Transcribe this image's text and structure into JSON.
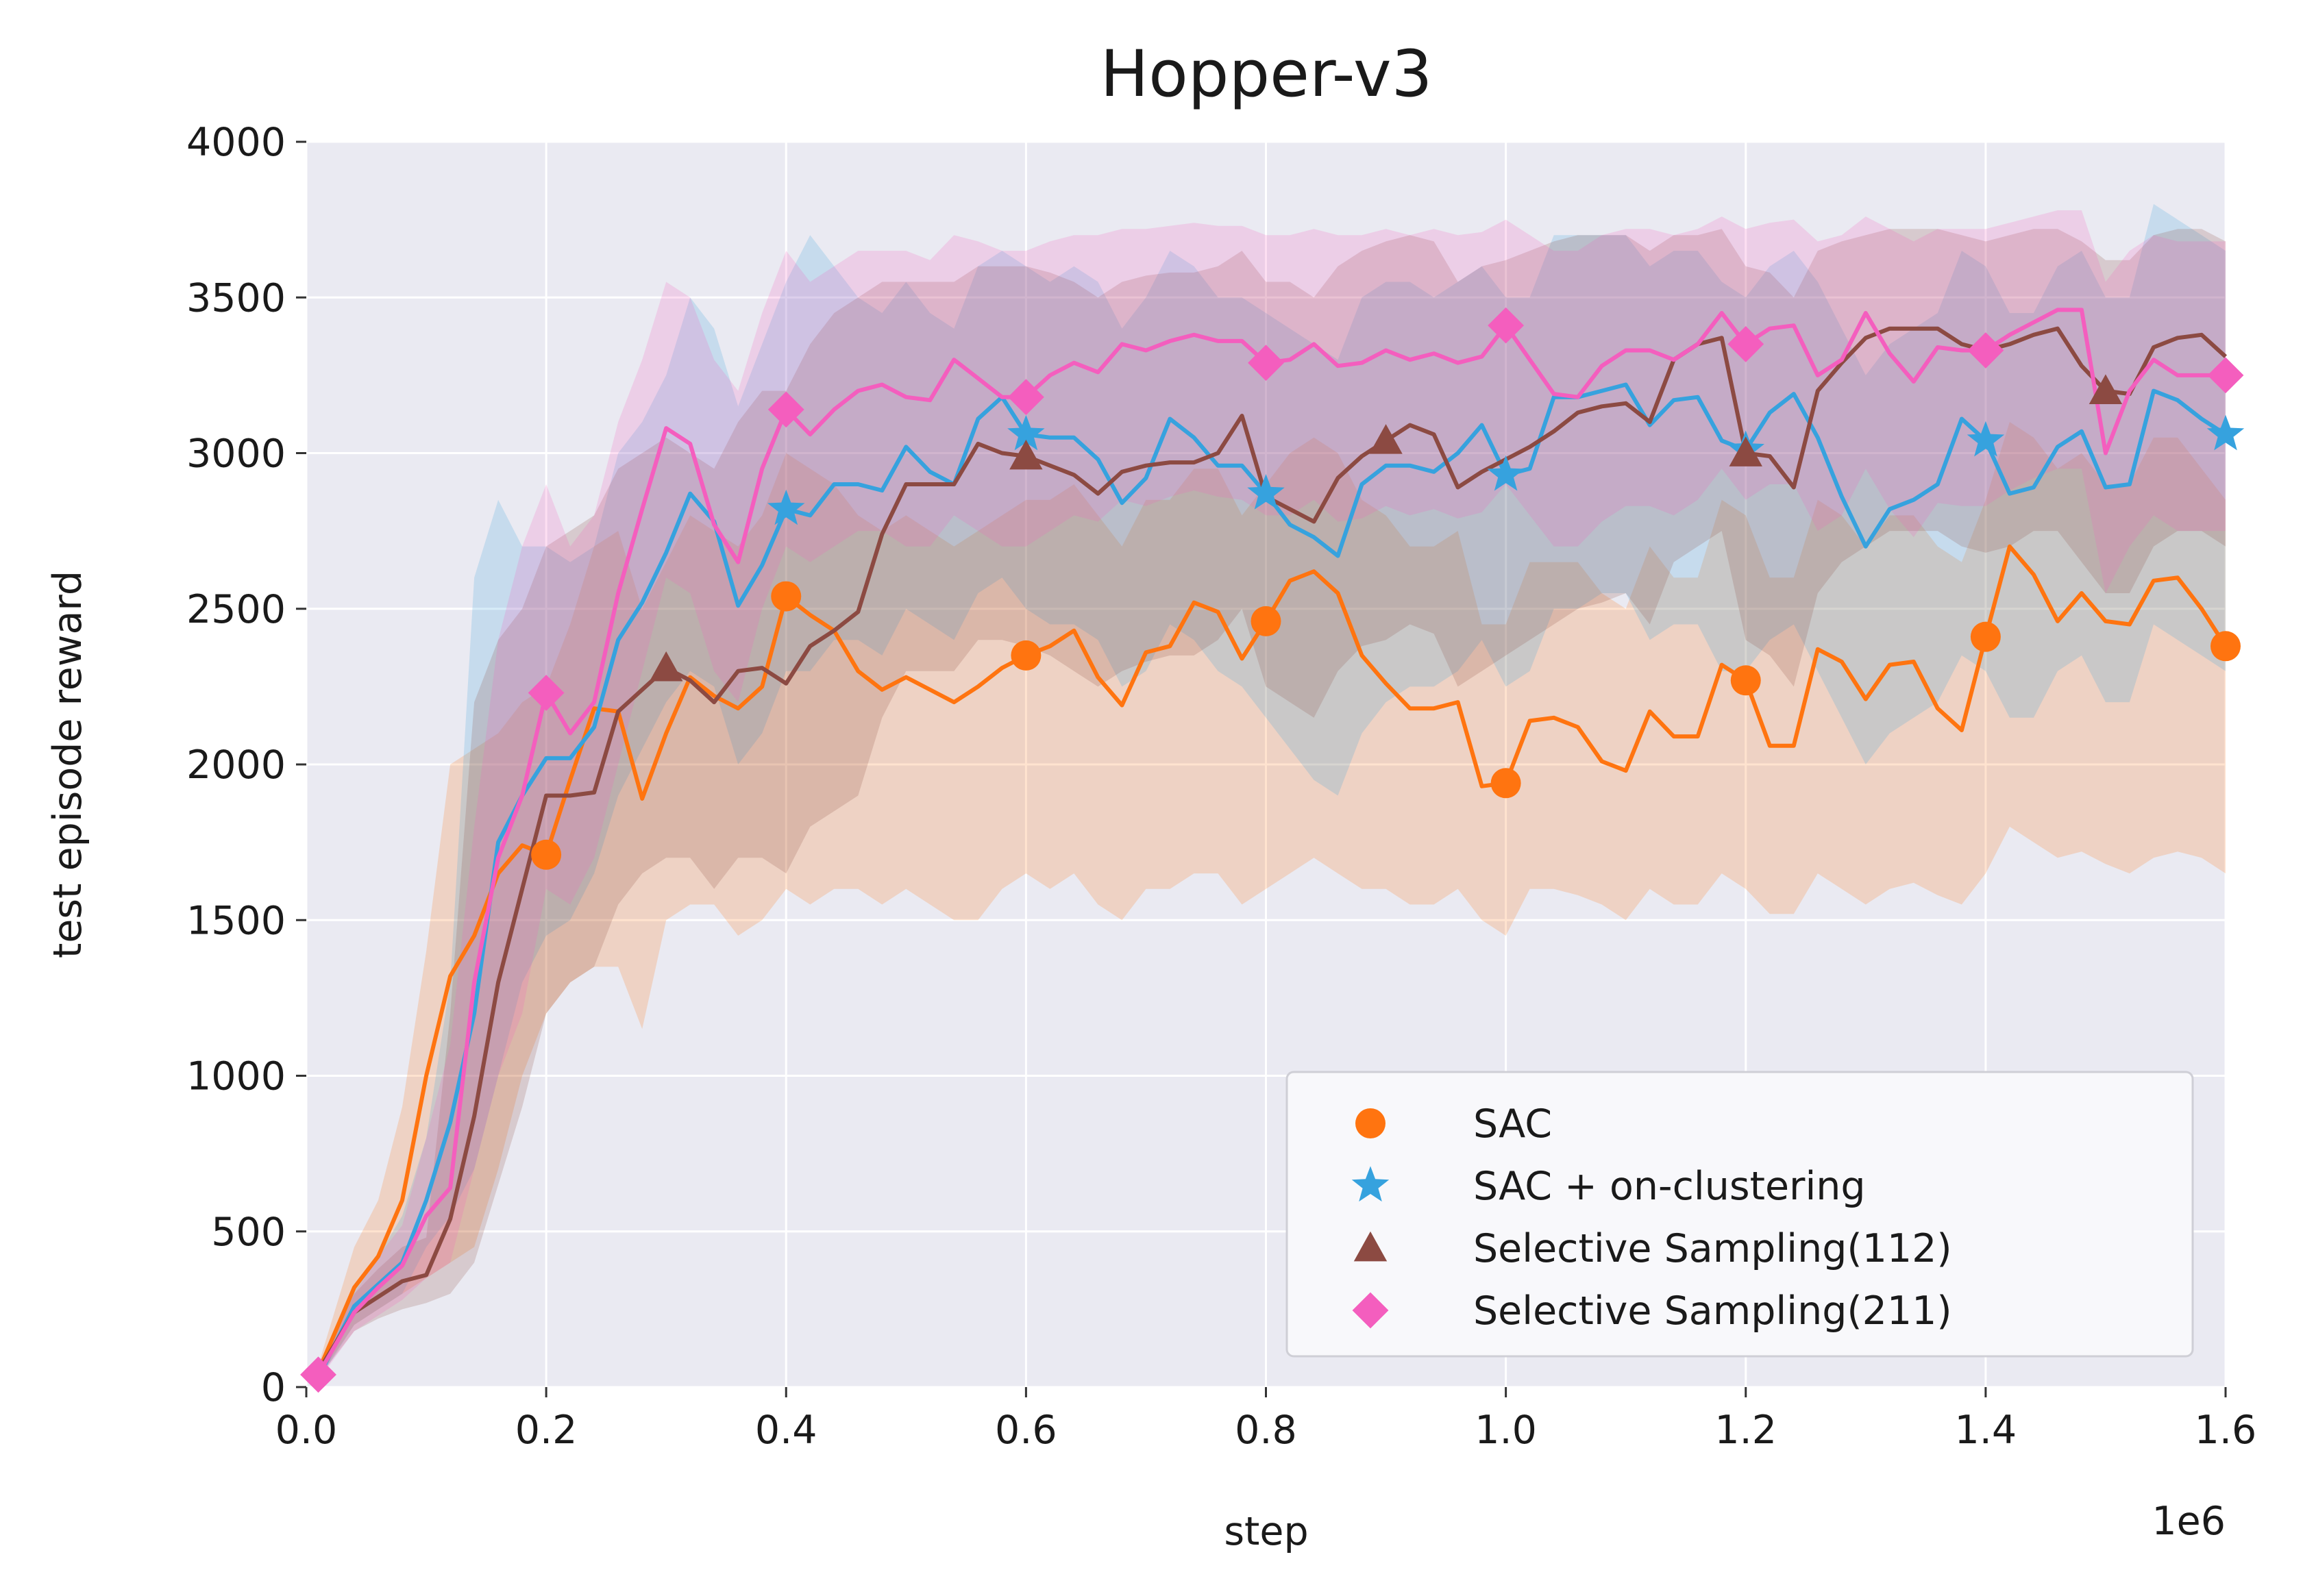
{
  "chart_data": {
    "type": "line",
    "title": "Hopper-v3",
    "xlabel": "step",
    "ylabel": "test episode reward",
    "x_offset_label": "1e6",
    "xlim": [
      0,
      1.6
    ],
    "ylim": [
      0,
      4000
    ],
    "x_ticks": [
      "0.0",
      "0.2",
      "0.4",
      "0.6",
      "0.8",
      "1.0",
      "1.2",
      "1.4",
      "1.6"
    ],
    "y_ticks": [
      "0",
      "500",
      "1000",
      "1500",
      "2000",
      "2500",
      "3000",
      "3500",
      "4000"
    ],
    "grid": true,
    "legend_position": "bottom-right",
    "x": [
      0.01,
      0.04,
      0.06,
      0.08,
      0.1,
      0.12,
      0.14,
      0.16,
      0.18,
      0.2,
      0.22,
      0.24,
      0.26,
      0.28,
      0.3,
      0.32,
      0.34,
      0.36,
      0.38,
      0.4,
      0.42,
      0.44,
      0.46,
      0.48,
      0.5,
      0.52,
      0.54,
      0.56,
      0.58,
      0.6,
      0.62,
      0.64,
      0.66,
      0.68,
      0.7,
      0.72,
      0.74,
      0.76,
      0.78,
      0.8,
      0.82,
      0.84,
      0.86,
      0.88,
      0.9,
      0.92,
      0.94,
      0.96,
      0.98,
      1.0,
      1.02,
      1.04,
      1.06,
      1.08,
      1.1,
      1.12,
      1.14,
      1.16,
      1.18,
      1.2,
      1.22,
      1.24,
      1.26,
      1.28,
      1.3,
      1.32,
      1.34,
      1.36,
      1.38,
      1.4,
      1.42,
      1.44,
      1.46,
      1.48,
      1.5,
      1.52,
      1.54,
      1.56,
      1.58,
      1.6
    ],
    "series": [
      {
        "name": "SAC",
        "color": "#ff7410",
        "marker": "circle",
        "marker_x": [
          0.2,
          0.4,
          0.6,
          0.8,
          1.0,
          1.2,
          1.4,
          1.6
        ],
        "values": [
          50,
          320,
          420,
          600,
          1000,
          1320,
          1450,
          1650,
          1740,
          1710,
          1950,
          2180,
          2170,
          1890,
          2100,
          2280,
          2220,
          2180,
          2250,
          2540,
          2480,
          2430,
          2300,
          2240,
          2280,
          2240,
          2200,
          2250,
          2310,
          2350,
          2380,
          2430,
          2280,
          2190,
          2360,
          2380,
          2520,
          2490,
          2340,
          2460,
          2590,
          2620,
          2550,
          2350,
          2260,
          2180,
          2180,
          2200,
          1930,
          1940,
          2140,
          2150,
          2120,
          2010,
          1980,
          2170,
          2090,
          2090,
          2320,
          2270,
          2060,
          2060,
          2370,
          2330,
          2210,
          2320,
          2330,
          2180,
          2110,
          2410,
          2700,
          2610,
          2460,
          2550,
          2460,
          2450,
          2590,
          2600,
          2500,
          2380
        ],
        "lower": [
          30,
          200,
          250,
          300,
          350,
          400,
          450,
          700,
          1000,
          1200,
          1300,
          1350,
          1350,
          1150,
          1500,
          1550,
          1550,
          1450,
          1500,
          1600,
          1550,
          1600,
          1600,
          1550,
          1600,
          1550,
          1500,
          1500,
          1600,
          1650,
          1600,
          1650,
          1550,
          1500,
          1600,
          1600,
          1650,
          1650,
          1550,
          1600,
          1650,
          1700,
          1650,
          1600,
          1600,
          1550,
          1550,
          1600,
          1500,
          1450,
          1600,
          1600,
          1580,
          1550,
          1500,
          1600,
          1550,
          1550,
          1650,
          1600,
          1520,
          1520,
          1650,
          1600,
          1550,
          1600,
          1620,
          1580,
          1550,
          1650,
          1800,
          1750,
          1700,
          1720,
          1680,
          1650,
          1700,
          1720,
          1700,
          1650
        ],
        "upper": [
          70,
          450,
          600,
          900,
          1400,
          2000,
          2050,
          2100,
          2200,
          2250,
          2450,
          2700,
          2750,
          2500,
          2650,
          2800,
          2750,
          2700,
          2800,
          3000,
          2950,
          2900,
          2800,
          2750,
          2800,
          2750,
          2700,
          2750,
          2800,
          2850,
          2850,
          2900,
          2800,
          2700,
          2850,
          2850,
          2950,
          2950,
          2800,
          2900,
          3000,
          3050,
          3000,
          2850,
          2800,
          2700,
          2700,
          2750,
          2450,
          2450,
          2650,
          2650,
          2650,
          2550,
          2500,
          2700,
          2600,
          2600,
          2850,
          2800,
          2600,
          2600,
          2850,
          2800,
          2700,
          2800,
          2800,
          2700,
          2650,
          2850,
          3100,
          3050,
          2950,
          3000,
          2900,
          2900,
          3050,
          3050,
          2950,
          2850
        ]
      },
      {
        "name": "SAC + on-clustering",
        "color": "#36a2de",
        "marker": "star",
        "marker_x": [
          0.4,
          0.6,
          0.8,
          1.0,
          1.2,
          1.4,
          1.6
        ],
        "values": [
          30,
          260,
          330,
          400,
          600,
          850,
          1200,
          1750,
          1900,
          2020,
          2020,
          2120,
          2400,
          2520,
          2680,
          2870,
          2780,
          2510,
          2640,
          2820,
          2800,
          2900,
          2900,
          2880,
          3020,
          2940,
          2900,
          3110,
          3180,
          3060,
          3050,
          3050,
          2980,
          2840,
          2920,
          3110,
          3050,
          2960,
          2960,
          2870,
          2770,
          2730,
          2670,
          2900,
          2960,
          2960,
          2940,
          3000,
          3090,
          2930,
          2950,
          3180,
          3180,
          3200,
          3220,
          3090,
          3170,
          3180,
          3040,
          3010,
          3130,
          3190,
          3050,
          2860,
          2700,
          2820,
          2850,
          2900,
          3110,
          3040,
          2870,
          2890,
          3020,
          3070,
          2890,
          2900,
          3200,
          3170,
          3110,
          3060
        ],
        "lower": [
          20,
          200,
          250,
          300,
          450,
          550,
          700,
          1000,
          1300,
          1450,
          1500,
          1650,
          1900,
          2050,
          2200,
          2300,
          2250,
          2000,
          2100,
          2300,
          2300,
          2400,
          2400,
          2350,
          2500,
          2450,
          2400,
          2550,
          2600,
          2500,
          2450,
          2450,
          2400,
          2250,
          2300,
          2450,
          2400,
          2300,
          2250,
          2150,
          2050,
          1950,
          1900,
          2100,
          2200,
          2250,
          2250,
          2300,
          2400,
          2250,
          2300,
          2500,
          2500,
          2550,
          2550,
          2400,
          2450,
          2450,
          2300,
          2300,
          2400,
          2450,
          2300,
          2150,
          2000,
          2100,
          2150,
          2200,
          2350,
          2300,
          2150,
          2150,
          2300,
          2350,
          2200,
          2200,
          2450,
          2400,
          2350,
          2300
        ],
        "upper": [
          40,
          320,
          420,
          550,
          800,
          1300,
          2600,
          2850,
          2700,
          2700,
          2650,
          2700,
          3000,
          3100,
          3250,
          3500,
          3400,
          3150,
          3350,
          3550,
          3700,
          3600,
          3500,
          3450,
          3550,
          3450,
          3400,
          3600,
          3650,
          3600,
          3550,
          3600,
          3550,
          3400,
          3500,
          3650,
          3600,
          3500,
          3500,
          3450,
          3400,
          3350,
          3300,
          3500,
          3550,
          3550,
          3500,
          3550,
          3600,
          3500,
          3500,
          3700,
          3700,
          3700,
          3700,
          3600,
          3650,
          3650,
          3550,
          3500,
          3600,
          3650,
          3550,
          3400,
          3250,
          3350,
          3400,
          3450,
          3650,
          3600,
          3450,
          3450,
          3600,
          3650,
          3500,
          3500,
          3800,
          3750,
          3700,
          3650
        ]
      },
      {
        "name": "Selective Sampling(112)",
        "color": "#8c4a42",
        "marker": "triangle",
        "marker_x": [
          0.3,
          0.6,
          0.9,
          1.2,
          1.5
        ],
        "values": [
          50,
          240,
          290,
          340,
          360,
          540,
          870,
          1300,
          1600,
          1900,
          1900,
          1910,
          2170,
          2240,
          2310,
          2270,
          2200,
          2300,
          2310,
          2260,
          2380,
          2430,
          2490,
          2740,
          2900,
          2900,
          2900,
          3030,
          3000,
          2990,
          2960,
          2930,
          2870,
          2940,
          2960,
          2970,
          2970,
          3000,
          3120,
          2860,
          2820,
          2780,
          2920,
          2990,
          3040,
          3090,
          3060,
          2890,
          2940,
          2980,
          3020,
          3070,
          3130,
          3150,
          3160,
          3100,
          3300,
          3350,
          3370,
          3000,
          2990,
          2890,
          3200,
          3290,
          3370,
          3400,
          3400,
          3400,
          3350,
          3330,
          3350,
          3380,
          3400,
          3280,
          3200,
          3190,
          3340,
          3370,
          3380,
          3310
        ],
        "lower": [
          30,
          180,
          220,
          250,
          270,
          300,
          400,
          650,
          900,
          1200,
          1300,
          1350,
          1550,
          1650,
          1700,
          1700,
          1600,
          1700,
          1700,
          1650,
          1800,
          1850,
          1900,
          2150,
          2300,
          2300,
          2300,
          2400,
          2400,
          2380,
          2350,
          2300,
          2250,
          2300,
          2330,
          2350,
          2350,
          2400,
          2500,
          2250,
          2200,
          2150,
          2300,
          2380,
          2400,
          2450,
          2420,
          2250,
          2300,
          2350,
          2400,
          2450,
          2500,
          2520,
          2550,
          2450,
          2650,
          2700,
          2750,
          2400,
          2350,
          2250,
          2550,
          2650,
          2700,
          2750,
          2750,
          2750,
          2700,
          2680,
          2700,
          2750,
          2750,
          2650,
          2550,
          2550,
          2700,
          2750,
          2750,
          2700
        ],
        "upper": [
          70,
          300,
          380,
          450,
          480,
          1200,
          2200,
          2400,
          2500,
          2700,
          2750,
          2800,
          2950,
          3000,
          3050,
          3000,
          2950,
          3100,
          3200,
          3200,
          3350,
          3450,
          3500,
          3550,
          3550,
          3550,
          3550,
          3600,
          3600,
          3600,
          3580,
          3550,
          3500,
          3550,
          3570,
          3580,
          3580,
          3600,
          3650,
          3550,
          3550,
          3500,
          3600,
          3650,
          3680,
          3700,
          3680,
          3550,
          3600,
          3620,
          3650,
          3680,
          3700,
          3700,
          3700,
          3650,
          3700,
          3700,
          3720,
          3600,
          3580,
          3500,
          3650,
          3680,
          3700,
          3720,
          3720,
          3720,
          3700,
          3680,
          3700,
          3720,
          3720,
          3680,
          3620,
          3620,
          3700,
          3720,
          3720,
          3680
        ]
      },
      {
        "name": "Selective Sampling(211)",
        "color": "#f45ebe",
        "marker": "diamond",
        "marker_x": [
          0.01,
          0.2,
          0.4,
          0.6,
          0.8,
          1.0,
          1.2,
          1.4,
          1.6
        ],
        "values": [
          40,
          240,
          320,
          390,
          550,
          640,
          1300,
          1700,
          1900,
          2230,
          2100,
          2200,
          2550,
          2820,
          3080,
          3030,
          2770,
          2650,
          2950,
          3140,
          3060,
          3140,
          3200,
          3220,
          3180,
          3170,
          3300,
          3240,
          3180,
          3180,
          3250,
          3290,
          3260,
          3350,
          3330,
          3360,
          3380,
          3360,
          3360,
          3290,
          3300,
          3350,
          3280,
          3290,
          3330,
          3300,
          3320,
          3290,
          3310,
          3410,
          3300,
          3190,
          3180,
          3280,
          3330,
          3330,
          3300,
          3350,
          3450,
          3350,
          3400,
          3410,
          3250,
          3300,
          3450,
          3320,
          3230,
          3340,
          3330,
          3330,
          3380,
          3420,
          3460,
          3460,
          3000,
          3200,
          3300,
          3250,
          3250,
          3250
        ],
        "lower": [
          20,
          180,
          230,
          280,
          350,
          400,
          700,
          1000,
          1200,
          1600,
          1550,
          1700,
          2000,
          2300,
          2600,
          2550,
          2300,
          2200,
          2500,
          2700,
          2650,
          2700,
          2750,
          2750,
          2700,
          2700,
          2800,
          2750,
          2700,
          2700,
          2750,
          2800,
          2780,
          2850,
          2830,
          2860,
          2880,
          2860,
          2850,
          2800,
          2800,
          2850,
          2780,
          2790,
          2830,
          2800,
          2820,
          2790,
          2810,
          2900,
          2800,
          2700,
          2700,
          2780,
          2830,
          2830,
          2800,
          2850,
          2950,
          2850,
          2900,
          2900,
          2750,
          2800,
          2950,
          2820,
          2730,
          2840,
          2830,
          2830,
          2880,
          2920,
          2950,
          2950,
          2550,
          2700,
          2800,
          2750,
          2750,
          2750
        ],
        "upper": [
          60,
          300,
          420,
          520,
          800,
          1100,
          1800,
          2400,
          2700,
          2900,
          2700,
          2800,
          3100,
          3300,
          3550,
          3500,
          3300,
          3200,
          3450,
          3650,
          3550,
          3600,
          3650,
          3650,
          3650,
          3620,
          3700,
          3680,
          3650,
          3650,
          3680,
          3700,
          3700,
          3720,
          3720,
          3730,
          3740,
          3730,
          3730,
          3700,
          3700,
          3720,
          3700,
          3700,
          3720,
          3700,
          3720,
          3700,
          3710,
          3750,
          3700,
          3650,
          3650,
          3700,
          3720,
          3720,
          3700,
          3720,
          3760,
          3720,
          3740,
          3750,
          3680,
          3700,
          3760,
          3720,
          3680,
          3720,
          3720,
          3720,
          3740,
          3760,
          3780,
          3780,
          3550,
          3650,
          3700,
          3680,
          3680,
          3680
        ]
      }
    ]
  }
}
